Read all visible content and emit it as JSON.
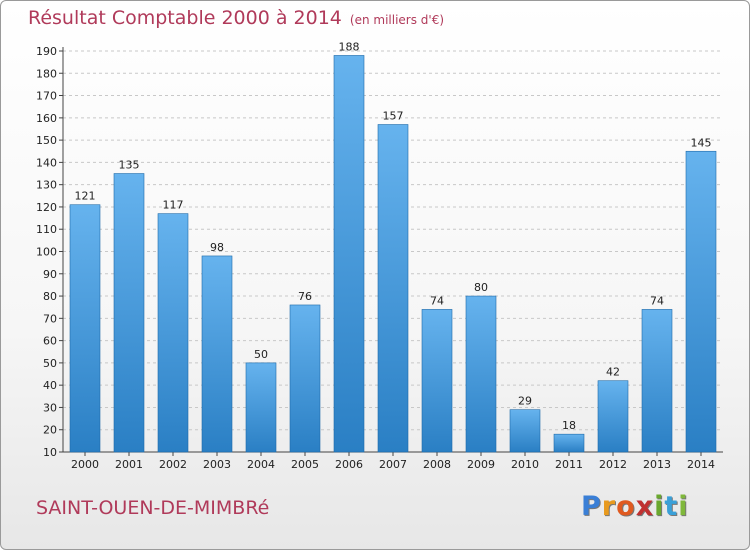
{
  "chart_data": {
    "type": "bar",
    "title": "Résultat Comptable 2000 à 2014",
    "unit": "(en milliers d'€)",
    "xlabel": "",
    "ylabel": "",
    "categories": [
      "2000",
      "2001",
      "2002",
      "2003",
      "2004",
      "2005",
      "2006",
      "2007",
      "2008",
      "2009",
      "2010",
      "2011",
      "2012",
      "2013",
      "2014"
    ],
    "values": [
      121,
      135,
      117,
      98,
      50,
      76,
      188,
      157,
      74,
      80,
      29,
      18,
      42,
      74,
      145
    ],
    "ylim": [
      10,
      190
    ],
    "yticks": [
      10,
      20,
      30,
      40,
      50,
      60,
      70,
      80,
      90,
      100,
      110,
      120,
      130,
      140,
      150,
      160,
      170,
      180,
      190
    ],
    "grid": true
  },
  "footer": {
    "town": "SAINT-OUEN-DE-MIMBRé",
    "logo": [
      "P",
      "r",
      "o",
      "x",
      "i",
      "t",
      "i"
    ]
  },
  "colors": {
    "bar_light": "#66b3ee",
    "bar_dark": "#2a7fc4",
    "title": "#b03a5a",
    "grid": "#c8c8c8"
  }
}
